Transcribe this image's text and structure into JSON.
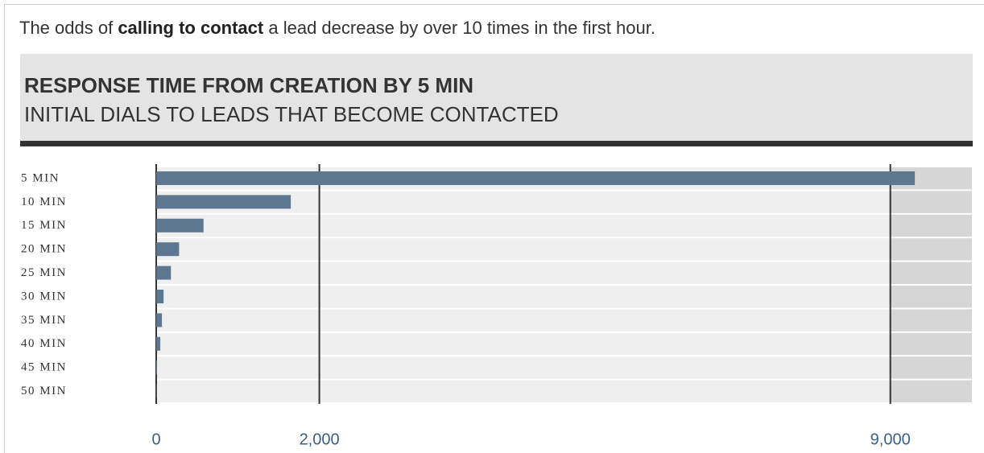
{
  "caption": {
    "before": "The odds of",
    "bold": "calling to contact",
    "after": "a lead decrease by over 10 times in the first hour."
  },
  "chart_data": {
    "type": "bar",
    "orientation": "horizontal",
    "title": "RESPONSE TIME FROM CREATION BY 5 MIN",
    "subtitle": "INITIAL DIALS TO LEADS THAT BECOME CONTACTED",
    "categories": [
      "5 MIN",
      "10 MIN",
      "15 MIN",
      "20 MIN",
      "25 MIN",
      "30 MIN",
      "35 MIN",
      "40 MIN",
      "45 MIN",
      "50 MIN"
    ],
    "values": [
      9300,
      1650,
      580,
      280,
      180,
      90,
      70,
      50,
      10,
      5
    ],
    "color": "#5d7790",
    "xlim": [
      0,
      10000
    ],
    "xticks": [
      0,
      {
        "value": 2000,
        "label": "2,000"
      },
      {
        "value": 9000,
        "label": "9,000"
      }
    ],
    "grid": true
  }
}
